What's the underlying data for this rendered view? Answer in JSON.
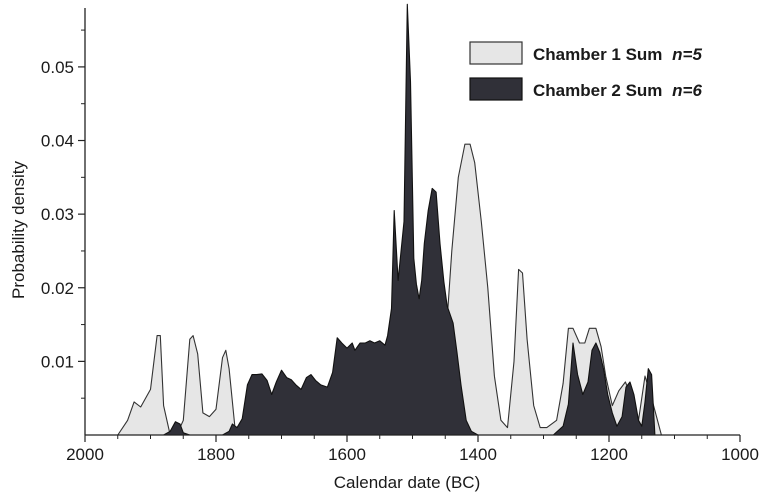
{
  "chart_data": {
    "type": "area",
    "title": "",
    "xlabel": "Calendar date (BC)",
    "ylabel": "Probability density",
    "xlim": [
      2000,
      1000
    ],
    "ylim": [
      0,
      0.058
    ],
    "x_reversed": true,
    "x_ticks": [
      2000,
      1800,
      1600,
      1400,
      1200,
      1000
    ],
    "x_tick_labels": [
      "2000",
      "1800",
      "1600",
      "1400",
      "1200",
      "1000"
    ],
    "y_ticks": [
      0.01,
      0.02,
      0.03,
      0.04,
      0.05
    ],
    "y_tick_labels": [
      "0.01",
      "0.02",
      "0.03",
      "0.04",
      "0.05"
    ],
    "grid": false,
    "legend_position": "top-right",
    "series": [
      {
        "name": "Chamber 1 Sum",
        "n_label": "n=5",
        "fill": "#e6e6e6",
        "stroke": "#333333",
        "x": [
          1950,
          1935,
          1925,
          1915,
          1900,
          1890,
          1885,
          1880,
          1870,
          1860,
          1850,
          1840,
          1835,
          1828,
          1820,
          1810,
          1800,
          1790,
          1785,
          1780,
          1770,
          1760,
          1740,
          1720,
          1700,
          1680,
          1650,
          1620,
          1590,
          1560,
          1540,
          1520,
          1510,
          1500,
          1490,
          1480,
          1470,
          1460,
          1450,
          1440,
          1430,
          1420,
          1412,
          1405,
          1395,
          1385,
          1375,
          1365,
          1355,
          1345,
          1338,
          1332,
          1325,
          1315,
          1305,
          1295,
          1280,
          1270,
          1262,
          1255,
          1245,
          1237,
          1230,
          1220,
          1212,
          1205,
          1195,
          1185,
          1175,
          1165,
          1155,
          1145,
          1135,
          1120
        ],
        "y": [
          0,
          0.002,
          0.0045,
          0.0038,
          0.0062,
          0.0135,
          0.0135,
          0.004,
          0,
          0,
          0.002,
          0.013,
          0.0135,
          0.011,
          0.003,
          0.0025,
          0.0035,
          0.0105,
          0.0115,
          0.009,
          0,
          0,
          0,
          0,
          0,
          0,
          0,
          0,
          0,
          0,
          0,
          0,
          0,
          0,
          0,
          0,
          0.002,
          0.005,
          0.012,
          0.025,
          0.035,
          0.0395,
          0.0395,
          0.037,
          0.029,
          0.02,
          0.008,
          0.002,
          0.001,
          0.01,
          0.0225,
          0.022,
          0.013,
          0.004,
          0.001,
          0.001,
          0.002,
          0.007,
          0.0145,
          0.0145,
          0.0125,
          0.0125,
          0.0145,
          0.0145,
          0.012,
          0.008,
          0.004,
          0.006,
          0.0072,
          0.005,
          0.002,
          0.008,
          0.005,
          0
        ]
      },
      {
        "name": "Chamber 2 Sum",
        "n_label": "n=6",
        "fill": "#303038",
        "stroke": "#111111",
        "x": [
          1880,
          1870,
          1862,
          1855,
          1850,
          1840,
          1820,
          1810,
          1790,
          1780,
          1775,
          1768,
          1760,
          1752,
          1745,
          1738,
          1730,
          1722,
          1715,
          1708,
          1700,
          1692,
          1685,
          1678,
          1670,
          1662,
          1655,
          1648,
          1640,
          1630,
          1622,
          1615,
          1608,
          1600,
          1592,
          1588,
          1580,
          1572,
          1565,
          1558,
          1550,
          1542,
          1538,
          1532,
          1528,
          1522,
          1518,
          1513,
          1508,
          1503,
          1498,
          1494,
          1490,
          1486,
          1482,
          1476,
          1470,
          1464,
          1458,
          1452,
          1447,
          1443,
          1438,
          1432,
          1426,
          1418,
          1410,
          1400,
          1385,
          1370,
          1360,
          1340,
          1320,
          1300,
          1285,
          1270,
          1262,
          1255,
          1248,
          1240,
          1232,
          1226,
          1220,
          1214,
          1208,
          1202,
          1195,
          1188,
          1180,
          1174,
          1168,
          1162,
          1155,
          1150,
          1145,
          1140,
          1135,
          1130
        ],
        "y": [
          0,
          0.0005,
          0.0018,
          0.0015,
          0.0003,
          0,
          0,
          0,
          0,
          0.0005,
          0.0015,
          0.001,
          0.0022,
          0.0068,
          0.0082,
          0.0082,
          0.0083,
          0.0074,
          0.0055,
          0.0072,
          0.0088,
          0.0078,
          0.0075,
          0.0068,
          0.0062,
          0.0078,
          0.0082,
          0.0074,
          0.0068,
          0.0065,
          0.0085,
          0.0132,
          0.0125,
          0.0118,
          0.0125,
          0.0115,
          0.0125,
          0.0125,
          0.0128,
          0.0125,
          0.0128,
          0.0122,
          0.0135,
          0.0172,
          0.0305,
          0.021,
          0.0245,
          0.029,
          0.0585,
          0.048,
          0.024,
          0.0205,
          0.0185,
          0.021,
          0.026,
          0.0305,
          0.0335,
          0.033,
          0.026,
          0.0208,
          0.0175,
          0.0165,
          0.0152,
          0.0112,
          0.0068,
          0.002,
          0.0005,
          0,
          0,
          0,
          0,
          0,
          0,
          0,
          0,
          0.0012,
          0.0042,
          0.0125,
          0.0082,
          0.0055,
          0.0072,
          0.0115,
          0.0125,
          0.0112,
          0.0088,
          0.0055,
          0.003,
          0.0012,
          0.0025,
          0.0065,
          0.0072,
          0.0055,
          0.002,
          0.0012,
          0.0045,
          0.009,
          0.0082,
          0
        ]
      }
    ]
  }
}
